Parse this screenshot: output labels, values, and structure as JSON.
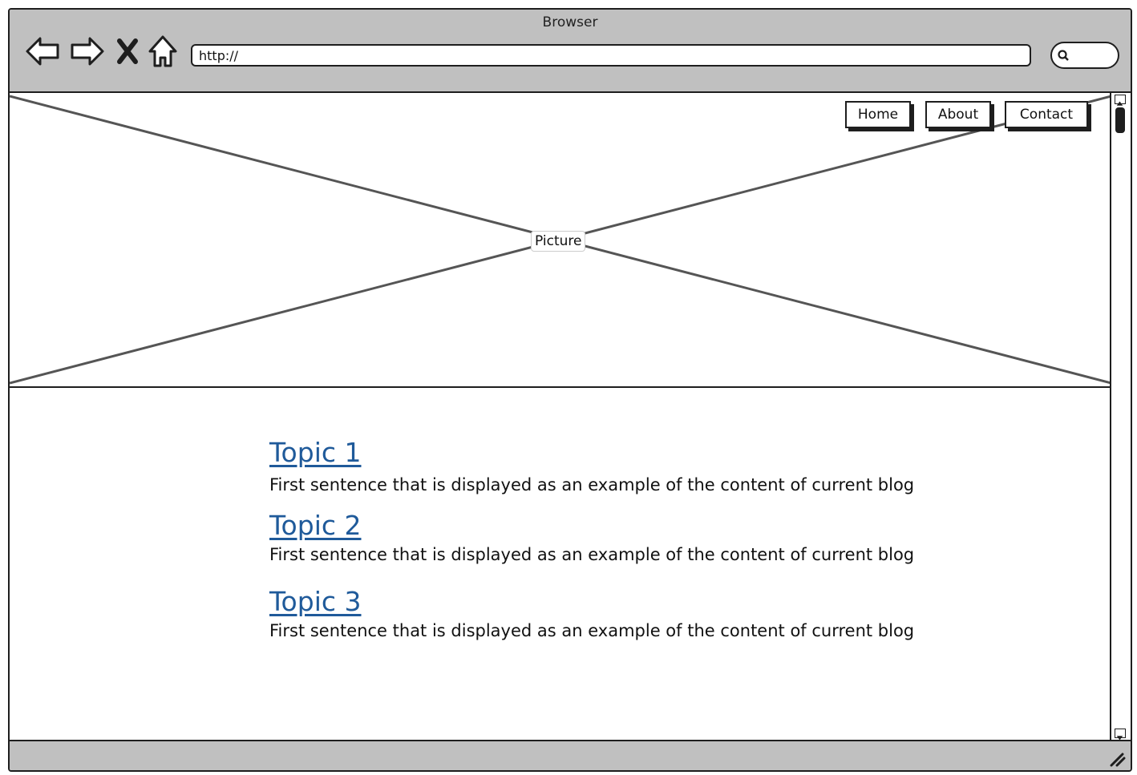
{
  "window": {
    "title": "Browser"
  },
  "toolbar": {
    "url": "http://"
  },
  "hero": {
    "picture_label": "Picture"
  },
  "nav": {
    "items": [
      {
        "label": "Home"
      },
      {
        "label": "About"
      },
      {
        "label": "Contact"
      }
    ]
  },
  "posts": [
    {
      "title": "Topic 1",
      "excerpt": "First sentence that is displayed as an example of the content of current blog"
    },
    {
      "title": "Topic 2",
      "excerpt": "First sentence that is displayed as an example of the content of current blog"
    },
    {
      "title": "Topic 3",
      "excerpt": "First sentence that is displayed as an example of the content of current blog"
    }
  ],
  "icons": {
    "back": "back-arrow-icon",
    "forward": "forward-arrow-icon",
    "stop": "close-icon",
    "home": "home-icon",
    "search": "search-icon",
    "resize": "resize-grip-icon"
  }
}
